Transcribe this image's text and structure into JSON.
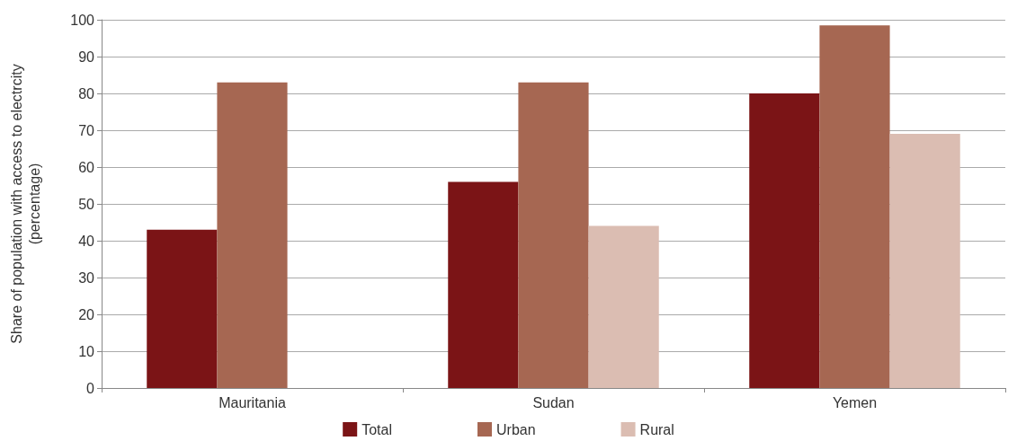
{
  "chart_data": {
    "type": "bar",
    "ylabel": "Share of population with access to electrcity\n(percentage)",
    "categories": [
      "Mauritania",
      "Sudan",
      "Yemen"
    ],
    "series": [
      {
        "name": "Total",
        "color": "#7b1416",
        "values": [
          43,
          56,
          80
        ]
      },
      {
        "name": "Urban",
        "color": "#a66752",
        "values": [
          83,
          83,
          98.5
        ]
      },
      {
        "name": "Rural",
        "color": "#dbbdb2",
        "values": [
          null,
          44,
          69
        ]
      }
    ],
    "ylim": [
      0,
      100
    ],
    "yticks": [
      0,
      10,
      20,
      30,
      40,
      50,
      60,
      70,
      80,
      90,
      100
    ],
    "grid": "y",
    "legend": "bottom"
  }
}
